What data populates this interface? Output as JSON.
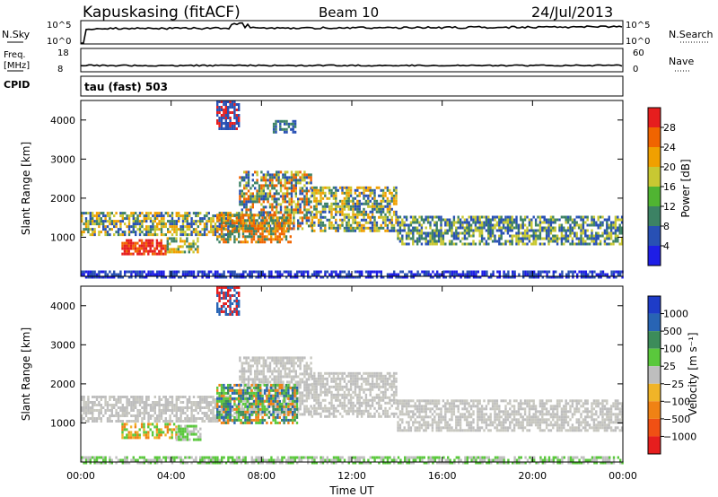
{
  "header": {
    "station": "Kapuskasing (fitACF)",
    "beam": "Beam 10",
    "date": "24/Jul/2013"
  },
  "top_strips": {
    "nsky_label": "N.Sky",
    "nsky_ticks": [
      "10^5",
      "10^0"
    ],
    "nsearch_label": "N.Search",
    "nsearch_ticks": [
      "10^5",
      "10^0"
    ],
    "freq_label": "Freq.",
    "freq_unit": "[MHz]",
    "freq_ticks": [
      "18",
      "8"
    ],
    "nave_label": "Nave",
    "nave_ticks": [
      "60",
      "0"
    ],
    "cpid_label": "CPID",
    "cpid_value": "tau (fast) 503"
  },
  "chart_data": [
    {
      "type": "heatmap",
      "name": "power-panel",
      "ylabel": "Slant Range [km]",
      "ylim": [
        0,
        4500
      ],
      "y_ticks": [
        1000,
        2000,
        3000,
        4000
      ],
      "xlim": [
        0,
        24
      ],
      "colorbar": {
        "label": "Power [dB]",
        "ticks": [
          "4",
          "8",
          "12",
          "16",
          "20",
          "24",
          "28"
        ],
        "colors": [
          "#1e1ee6",
          "#2850b4",
          "#3c8264",
          "#50b432",
          "#c8c832",
          "#f0a000",
          "#f06400",
          "#e61e1e"
        ]
      },
      "bands": [
        {
          "t0": 0.0,
          "t1": 7.0,
          "r0": 1050,
          "r1": 1650,
          "colors": [
            "#2850b4",
            "#3c8264",
            "#c8c832",
            "#f0a000"
          ]
        },
        {
          "t0": 7.0,
          "t1": 10.2,
          "r0": 1200,
          "r1": 2700,
          "colors": [
            "#2850b4",
            "#3c8264",
            "#c8c832",
            "#f06400"
          ]
        },
        {
          "t0": 10.2,
          "t1": 14.0,
          "r0": 1150,
          "r1": 2300,
          "colors": [
            "#2850b4",
            "#3c8264",
            "#c8c832",
            "#f0a000"
          ]
        },
        {
          "t0": 14.0,
          "t1": 24.0,
          "r0": 850,
          "r1": 1550,
          "colors": [
            "#2850b4",
            "#3c8264",
            "#c8c832"
          ]
        },
        {
          "t0": 1.8,
          "t1": 3.8,
          "r0": 600,
          "r1": 950,
          "colors": [
            "#f06400",
            "#e61e1e",
            "#e61e1e"
          ]
        },
        {
          "t0": 3.8,
          "t1": 5.2,
          "r0": 600,
          "r1": 1000,
          "colors": [
            "#3c8264",
            "#c8c832",
            "#f0a000"
          ]
        },
        {
          "t0": 6.0,
          "t1": 9.3,
          "r0": 900,
          "r1": 1600,
          "colors": [
            "#3c8264",
            "#f0a000",
            "#f06400"
          ]
        },
        {
          "t0": 6.0,
          "t1": 7.0,
          "r0": 3800,
          "r1": 4500,
          "colors": [
            "#2850b4",
            "#e61e1e"
          ]
        },
        {
          "t0": 8.5,
          "t1": 9.5,
          "r0": 3700,
          "r1": 4000,
          "colors": [
            "#2850b4",
            "#3c8264"
          ]
        },
        {
          "t0": 0.0,
          "t1": 24.0,
          "r0": 0,
          "r1": 150,
          "colors": [
            "#2850b4",
            "#1e1ee6"
          ]
        }
      ]
    },
    {
      "type": "heatmap",
      "name": "velocity-panel",
      "ylabel": "Slant Range [km]",
      "ylim": [
        0,
        4500
      ],
      "y_ticks": [
        1000,
        2000,
        3000,
        4000
      ],
      "xlim": [
        0,
        24
      ],
      "x_ticks": [
        "00:00",
        "04:00",
        "08:00",
        "12:00",
        "16:00",
        "20:00",
        "00:00"
      ],
      "xlabel": "Time UT",
      "colorbar": {
        "label": "Velocity [m s⁻¹]",
        "ticks": [
          "1000",
          "500",
          "100",
          "25",
          "−25",
          "−100",
          "−500",
          "−1000"
        ],
        "colors": [
          "#1e3cc8",
          "#2864b4",
          "#3c8c5a",
          "#5ac83c",
          "#bebebe",
          "#f0b428",
          "#f08214",
          "#f05014",
          "#e61e1e"
        ]
      },
      "bands": [
        {
          "t0": 0.0,
          "t1": 7.0,
          "r0": 1050,
          "r1": 1700,
          "colors": [
            "#bebebe",
            "#bebebe",
            "#c8c8c0"
          ]
        },
        {
          "t0": 7.0,
          "t1": 10.2,
          "r0": 1250,
          "r1": 2700,
          "colors": [
            "#bebebe",
            "#c8c8c0"
          ]
        },
        {
          "t0": 10.2,
          "t1": 14.0,
          "r0": 1150,
          "r1": 2300,
          "colors": [
            "#bebebe",
            "#c8c8c0"
          ]
        },
        {
          "t0": 14.0,
          "t1": 24.0,
          "r0": 800,
          "r1": 1600,
          "colors": [
            "#bebebe",
            "#c8c8c0"
          ]
        },
        {
          "t0": 1.8,
          "t1": 4.2,
          "r0": 600,
          "r1": 1000,
          "colors": [
            "#f08214",
            "#f0b428",
            "#5ac83c"
          ]
        },
        {
          "t0": 4.2,
          "t1": 5.3,
          "r0": 600,
          "r1": 950,
          "colors": [
            "#bebebe",
            "#5ac83c"
          ]
        },
        {
          "t0": 6.0,
          "t1": 9.6,
          "r0": 1000,
          "r1": 2000,
          "colors": [
            "#3c8c5a",
            "#5ac83c",
            "#f08214",
            "#2864b4"
          ]
        },
        {
          "t0": 6.0,
          "t1": 7.0,
          "r0": 3800,
          "r1": 4500,
          "colors": [
            "#2864b4",
            "#e61e1e"
          ]
        },
        {
          "t0": 0.0,
          "t1": 24.0,
          "r0": 0,
          "r1": 150,
          "colors": [
            "#5ac83c",
            "#bebebe"
          ]
        }
      ]
    }
  ]
}
